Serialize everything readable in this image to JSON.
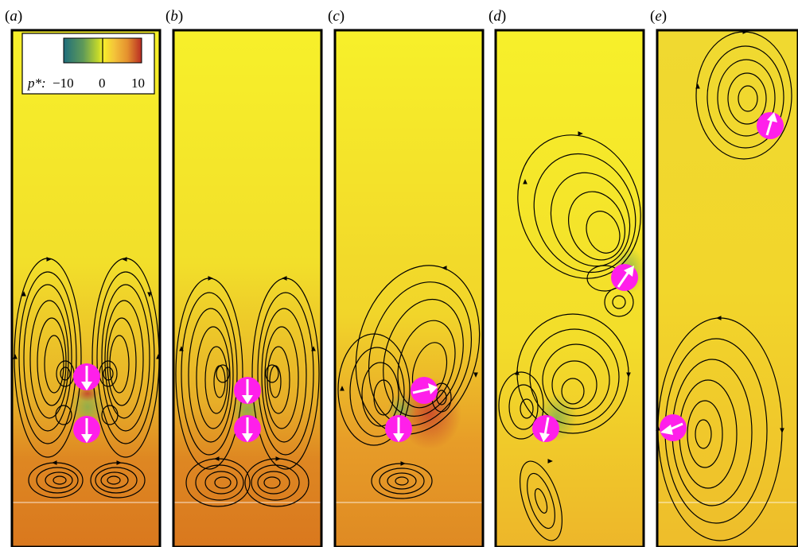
{
  "panels": [
    {
      "label_open": "(",
      "label_letter": "a",
      "label_close": ")"
    },
    {
      "label_open": "(",
      "label_letter": "b",
      "label_close": ")"
    },
    {
      "label_open": "(",
      "label_letter": "c",
      "label_close": ")"
    },
    {
      "label_open": "(",
      "label_letter": "d",
      "label_close": ")"
    },
    {
      "label_open": "(",
      "label_letter": "e",
      "label_close": ")"
    }
  ],
  "legend": {
    "variable": "p*:",
    "ticks": [
      "−10",
      "0",
      "10"
    ],
    "colormap": [
      "#1f6e7c",
      "#5f9a58",
      "#c6da2a",
      "#f6f12a",
      "#f4c33a",
      "#e4902e",
      "#b92b23"
    ]
  },
  "colors": {
    "particle": "#ff1fea",
    "arrow": "#ffffff",
    "streamline": "#000000",
    "field_top": "#f5ee2a",
    "field_bottom": "#e0801f",
    "wall": "#000000"
  }
}
